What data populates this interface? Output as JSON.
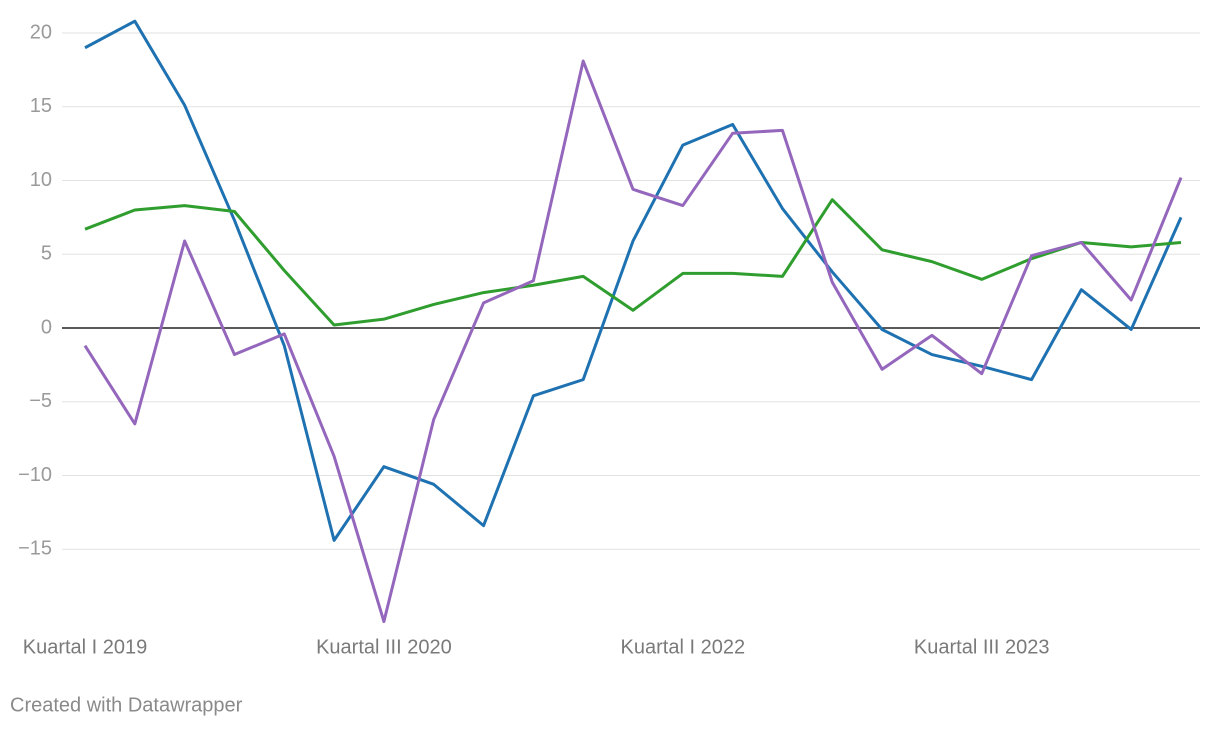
{
  "chart_data": {
    "type": "line",
    "categories": [
      "Kuartal I 2019",
      null,
      null,
      null,
      null,
      null,
      "Kuartal III 2020",
      null,
      null,
      null,
      null,
      null,
      "Kuartal I 2022",
      null,
      null,
      null,
      null,
      null,
      "Kuartal III 2023",
      null,
      null,
      null,
      null
    ],
    "series": [
      {
        "color": "#1f72b1",
        "values": [
          19.0,
          20.8,
          15.1,
          7.3,
          -1.2,
          -14.4,
          -9.4,
          -10.6,
          -13.4,
          -4.6,
          -3.5,
          5.9,
          12.4,
          13.8,
          8.1,
          3.8,
          -0.1,
          -1.8,
          -2.6,
          -3.5,
          2.6,
          -0.1,
          7.5
        ]
      },
      {
        "color": "#2f9e2f",
        "values": [
          6.7,
          8.0,
          8.3,
          7.9,
          3.9,
          0.2,
          0.6,
          1.6,
          2.4,
          2.9,
          3.5,
          1.2,
          3.7,
          3.7,
          3.5,
          8.7,
          5.3,
          4.5,
          3.3,
          4.7,
          5.8,
          5.5,
          5.8
        ]
      },
      {
        "color": "#9467bd",
        "values": [
          -1.2,
          -6.5,
          5.9,
          -1.8,
          -0.4,
          -8.7,
          -19.9,
          -6.2,
          1.7,
          3.2,
          18.1,
          9.4,
          8.3,
          13.2,
          13.4,
          3.1,
          -2.8,
          -0.5,
          -3.1,
          4.9,
          5.8,
          1.9,
          10.2
        ]
      }
    ],
    "ylim": [
      -20,
      20
    ],
    "yticks": [
      20,
      15,
      10,
      5,
      0,
      {
        "value": -5,
        "label": "−5"
      },
      {
        "value": -10,
        "label": "−10"
      },
      {
        "value": -15,
        "label": "−15"
      }
    ],
    "grid": true,
    "credit": "Created with Datawrapper"
  }
}
